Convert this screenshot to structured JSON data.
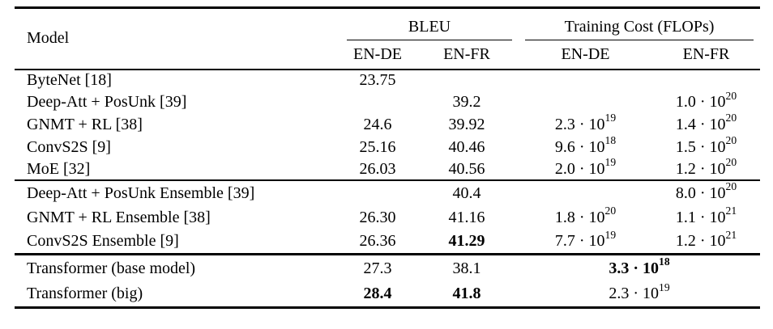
{
  "table": {
    "header": {
      "model_label": "Model",
      "groups": [
        {
          "label": "BLEU",
          "cols": [
            "EN-DE",
            "EN-FR"
          ]
        },
        {
          "label": "Training Cost (FLOPs)",
          "cols": [
            "EN-DE",
            "EN-FR"
          ]
        }
      ]
    },
    "blocks": [
      {
        "rows": [
          {
            "model": "ByteNet [18]",
            "bleu": [
              "23.75",
              ""
            ],
            "cost": [
              "",
              ""
            ]
          },
          {
            "model": "Deep-Att + PosUnk [39]",
            "bleu": [
              "",
              "39.2"
            ],
            "cost": [
              "",
              "1.0 · 10^20"
            ]
          },
          {
            "model": "GNMT + RL [38]",
            "bleu": [
              "24.6",
              "39.92"
            ],
            "cost": [
              "2.3 · 10^19",
              "1.4 · 10^20"
            ]
          },
          {
            "model": "ConvS2S [9]",
            "bleu": [
              "25.16",
              "40.46"
            ],
            "cost": [
              "9.6 · 10^18",
              "1.5 · 10^20"
            ]
          },
          {
            "model": "MoE [32]",
            "bleu": [
              "26.03",
              "40.56"
            ],
            "cost": [
              "2.0 · 10^19",
              "1.2 · 10^20"
            ]
          }
        ]
      },
      {
        "rows": [
          {
            "model": "Deep-Att + PosUnk Ensemble [39]",
            "bleu": [
              "",
              "40.4"
            ],
            "cost": [
              "",
              "8.0 · 10^20"
            ]
          },
          {
            "model": "GNMT + RL Ensemble [38]",
            "bleu": [
              "26.30",
              "41.16"
            ],
            "cost": [
              "1.8 · 10^20",
              "1.1 · 10^21"
            ]
          },
          {
            "model": "ConvS2S Ensemble [9]",
            "bleu": [
              "26.36",
              {
                "text": "41.29",
                "bold": true
              }
            ],
            "cost": [
              "7.7 · 10^19",
              "1.2 · 10^21"
            ]
          }
        ]
      },
      {
        "rows": [
          {
            "model": "Transformer (base model)",
            "bleu": [
              "27.3",
              "38.1"
            ],
            "cost_span": {
              "text": "3.3 · 10^18",
              "bold": true
            }
          },
          {
            "model": "Transformer (big)",
            "bleu": [
              {
                "text": "28.4",
                "bold": true
              },
              {
                "text": "41.8",
                "bold": true
              }
            ],
            "cost_span": {
              "text": "2.3 · 10^19",
              "bold": false
            }
          }
        ]
      }
    ]
  }
}
